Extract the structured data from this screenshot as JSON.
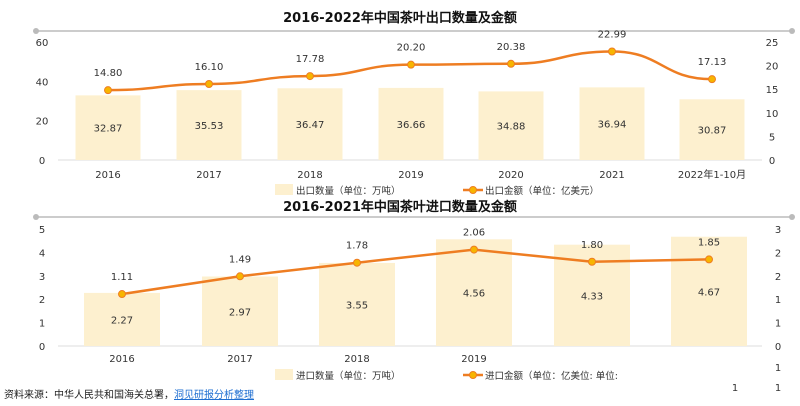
{
  "chart_data": [
    {
      "type": "bar+line",
      "title": "2016-2022年中国茶叶出口数量及金额",
      "categories": [
        "2016",
        "2017",
        "2018",
        "2019",
        "2020",
        "2021",
        "2022年1-10月"
      ],
      "series": [
        {
          "name": "出口数量（单位：万吨）",
          "type": "bar",
          "axis": "left",
          "values": [
            32.87,
            35.53,
            36.47,
            36.66,
            34.88,
            36.94,
            30.87
          ]
        },
        {
          "name": "出口金额（单位：亿美元）",
          "type": "line",
          "axis": "right",
          "values": [
            14.8,
            16.1,
            17.78,
            20.2,
            20.38,
            22.99,
            17.13
          ]
        }
      ],
      "left_axis": {
        "range": [
          0,
          60
        ],
        "ticks": [
          "0",
          "20",
          "40",
          "60"
        ]
      },
      "right_axis": {
        "range": [
          0,
          25
        ],
        "ticks": [
          "0",
          "5",
          "10",
          "15",
          "20",
          "25"
        ]
      },
      "legend": "bottom",
      "grid": false
    },
    {
      "type": "bar+line",
      "title": "2016-2021年中国茶叶进口数量及金额",
      "categories": [
        "2016",
        "2017",
        "2018",
        "2019",
        "",
        ""
      ],
      "series": [
        {
          "name": "进口数量（单位：万吨）",
          "type": "bar",
          "axis": "left",
          "values": [
            2.27,
            2.97,
            3.55,
            4.56,
            4.33,
            4.67
          ]
        },
        {
          "name": "进口金额（单位：亿美位: 单位:",
          "type": "line",
          "axis": "right",
          "values": [
            1.11,
            1.49,
            1.78,
            2.06,
            1.8,
            1.85
          ]
        }
      ],
      "left_axis": {
        "range": [
          0,
          5
        ],
        "ticks": [
          "0",
          "1",
          "2",
          "3",
          "4",
          "5"
        ]
      },
      "right_axis": {
        "range": [
          0,
          2.5
        ],
        "ticks": [
          "0",
          "1",
          "1",
          "2",
          "2",
          "3"
        ],
        "extra_ticks": [
          "1",
          "1",
          "1"
        ]
      },
      "legend": "bottom",
      "grid": false
    }
  ],
  "colors": {
    "bar": "#fdf0cf",
    "line": "#ee7d22",
    "marker": "#f7b500",
    "separator": "#cccccc"
  },
  "source": {
    "prefix": "资料来源：中华人民共和国海关总署，",
    "link": "洞见研报分析整理"
  }
}
